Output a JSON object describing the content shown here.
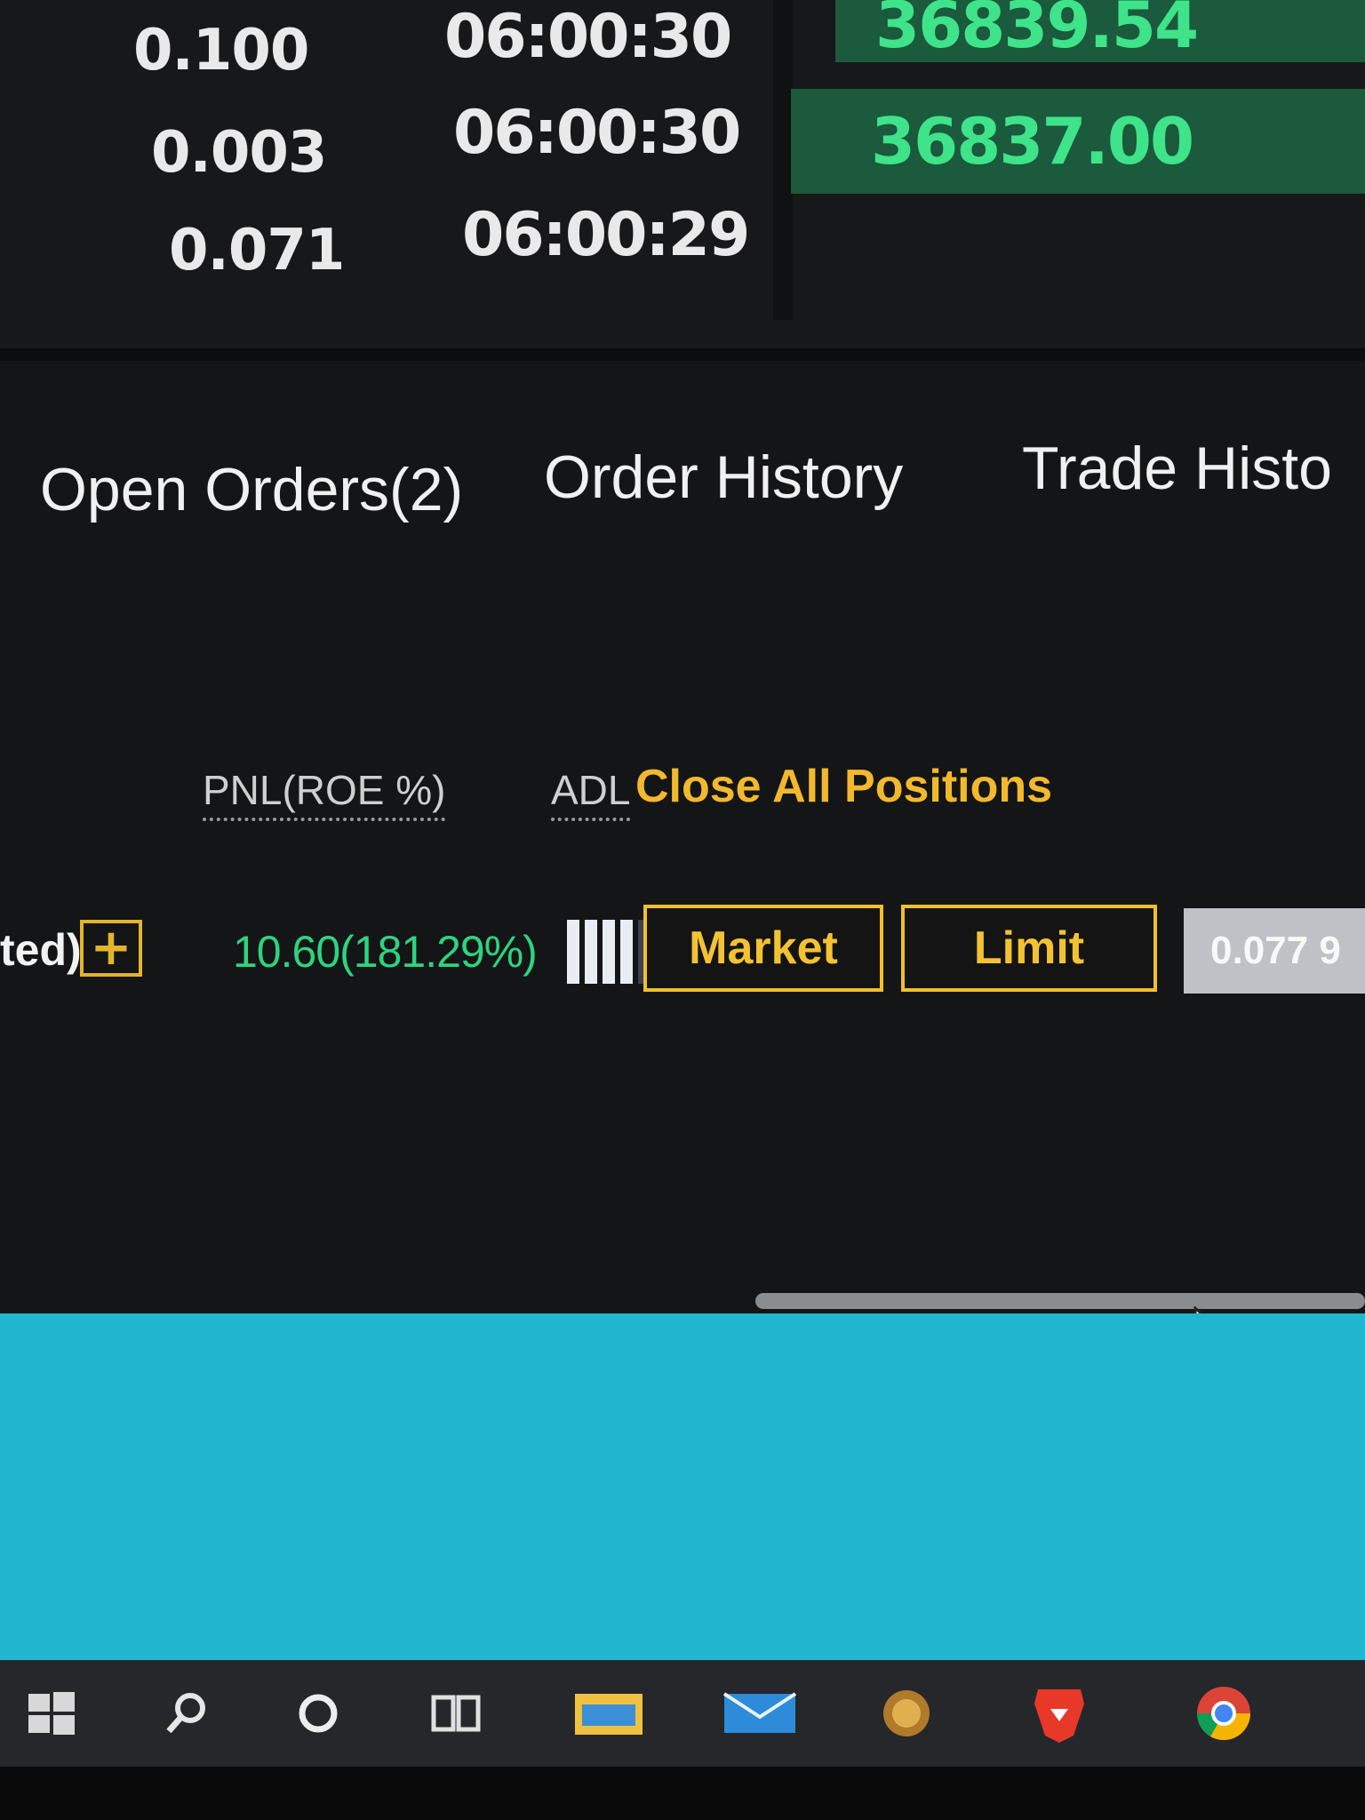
{
  "recent_trades": [
    {
      "qty": "0.100",
      "time": "06:00:30"
    },
    {
      "qty": "0.003",
      "time": "06:00:30"
    },
    {
      "qty": "0.071",
      "time": "06:00:29"
    }
  ],
  "prices": [
    {
      "value": "36839.54"
    },
    {
      "value": "36837.00"
    }
  ],
  "tabs": [
    {
      "label": "Open Orders(2)"
    },
    {
      "label": "Order History"
    },
    {
      "label": "Trade Histo"
    }
  ],
  "positions": {
    "headers": {
      "pnl": "PNL(ROE %)",
      "adl": "ADL"
    },
    "close_all_label": "Close All Positions",
    "row": {
      "margin_suffix": "ted)",
      "pnl": "10.60(181.29%)",
      "adl_level": 4,
      "adl_max": 5,
      "market_label": "Market",
      "limit_label": "Limit",
      "price_value": "0.077 9"
    }
  },
  "taskbar": {
    "icons": [
      "windows-start-icon",
      "search-icon",
      "cortana-icon",
      "task-view-icon",
      "file-explorer-icon",
      "mail-icon",
      "wallet-app-icon",
      "brave-browser-icon",
      "chrome-browser-icon"
    ]
  },
  "colors": {
    "buy_green": "#3ee38a",
    "accent_yellow": "#f3b92c",
    "desktop_blue": "#22b7d1"
  }
}
